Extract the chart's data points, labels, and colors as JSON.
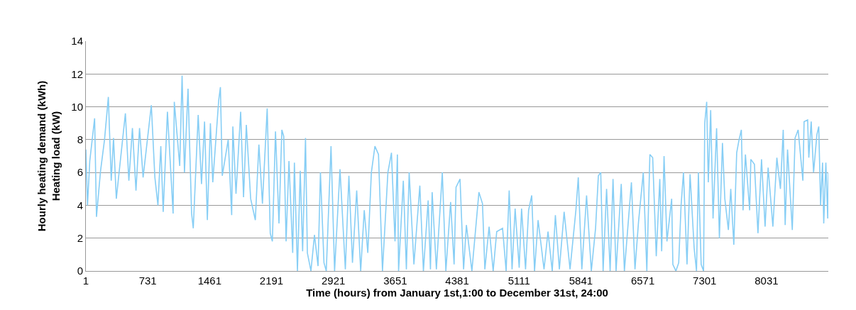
{
  "chart_data": {
    "type": "line",
    "xlabel": "Time (hours) from January 1st,1:00 to December 31st, 24:00",
    "ylabel": "Hourly heating demand (kWh)\nHeating load (kW)",
    "x": [
      1,
      20,
      47,
      104,
      126,
      174,
      221,
      266,
      300,
      327,
      360,
      467,
      508,
      550,
      592,
      634,
      676,
      773,
      815,
      851,
      885,
      913,
      963,
      1030,
      1044,
      1108,
      1136,
      1164,
      1206,
      1248,
      1268,
      1326,
      1365,
      1401,
      1434,
      1470,
      1498,
      1568,
      1588,
      1610,
      1680,
      1721,
      1735,
      1772,
      1827,
      1861,
      1894,
      1945,
      2000,
      2042,
      2084,
      2140,
      2176,
      2201,
      2238,
      2279,
      2313,
      2335,
      2363,
      2397,
      2441,
      2461,
      2497,
      2530,
      2558,
      2592,
      2614,
      2656,
      2698,
      2740,
      2768,
      2810,
      2837,
      2893,
      2935,
      2999,
      3062,
      3104,
      3146,
      3196,
      3243,
      3285,
      3327,
      3369,
      3411,
      3453,
      3500,
      3564,
      3606,
      3648,
      3676,
      3690,
      3746,
      3782,
      3815,
      3871,
      3941,
      3983,
      4039,
      4066,
      4086,
      4136,
      4206,
      4248,
      4304,
      4345,
      4368,
      4415,
      4457,
      4490,
      4555,
      4638,
      4680,
      4708,
      4758,
      4806,
      4848,
      4917,
      4959,
      4995,
      5029,
      5065,
      5113,
      5141,
      5188,
      5224,
      5261,
      5294,
      5336,
      5406,
      5453,
      5503,
      5540,
      5587,
      5643,
      5713,
      5782,
      5810,
      5852,
      5908,
      5964,
      6014,
      6047,
      6075,
      6103,
      6144,
      6186,
      6220,
      6256,
      6317,
      6354,
      6437,
      6479,
      6521,
      6577,
      6619,
      6655,
      6688,
      6730,
      6772,
      6794,
      6822,
      6856,
      6912,
      6926,
      6962,
      6995,
      7023,
      7051,
      7093,
      7129,
      7177,
      7205,
      7227,
      7260,
      7288,
      7302,
      7325,
      7344,
      7372,
      7400,
      7442,
      7475,
      7511,
      7539,
      7581,
      7609,
      7645,
      7679,
      7707,
      7734,
      7754,
      7782,
      7832,
      7846,
      7888,
      7930,
      7972,
      8014,
      8050,
      8106,
      8153,
      8195,
      8228,
      8251,
      8279,
      8335,
      8368,
      8404,
      8460,
      8474,
      8516,
      8530,
      8558,
      8586,
      8625,
      8647,
      8669,
      8692,
      8706,
      8731,
      8753,
      8760
    ],
    "series": [
      {
        "color": "#87cef5",
        "values": [
          7.4,
          4.0,
          6.7,
          9.3,
          3.3,
          6.1,
          8.0,
          10.6,
          5.5,
          8.1,
          4.4,
          9.6,
          5.5,
          8.7,
          4.9,
          8.7,
          5.7,
          10.1,
          5.7,
          4.0,
          7.6,
          3.6,
          9.7,
          3.5,
          10.3,
          6.4,
          11.9,
          6.0,
          11.1,
          3.5,
          2.6,
          9.5,
          5.3,
          9.1,
          3.1,
          9.0,
          5.4,
          10.4,
          11.2,
          5.8,
          8.0,
          3.4,
          8.8,
          4.7,
          9.7,
          4.5,
          8.9,
          4.4,
          3.1,
          7.7,
          4.1,
          9.9,
          2.3,
          1.8,
          8.5,
          2.9,
          8.6,
          8.2,
          1.8,
          6.7,
          1.1,
          6.6,
          0,
          6.1,
          1.2,
          8.1,
          1.1,
          0,
          2.2,
          0.3,
          6.0,
          0.5,
          0,
          7.6,
          0,
          6.2,
          0.1,
          5.8,
          0.5,
          4.9,
          0,
          3.7,
          1.1,
          6.0,
          7.6,
          7.1,
          0,
          6.0,
          7.2,
          1.8,
          7.1,
          0,
          5.5,
          0.1,
          6.0,
          0.4,
          5.2,
          0,
          4.3,
          0.1,
          4.8,
          0.1,
          6.0,
          0,
          4.2,
          0.4,
          5.1,
          5.6,
          0.1,
          2.8,
          0,
          4.8,
          4.1,
          0.1,
          2.7,
          0,
          2.4,
          2.6,
          0,
          4.9,
          0.1,
          3.8,
          0.2,
          3.8,
          0.1,
          3.7,
          4.6,
          0,
          3.1,
          0.1,
          2.4,
          0,
          3.4,
          0.1,
          3.6,
          0.1,
          3.7,
          5.7,
          0.1,
          4.6,
          0,
          2.6,
          5.8,
          6.0,
          0,
          5.0,
          0,
          5.6,
          0,
          5.3,
          0,
          5.4,
          0.1,
          3.0,
          6.0,
          0,
          7.1,
          6.9,
          0.9,
          5.6,
          1.2,
          7.0,
          1.8,
          4.4,
          0.4,
          0,
          0.5,
          4.0,
          6.0,
          0.4,
          5.9,
          1.4,
          0,
          6.0,
          0.4,
          0,
          9.0,
          10.3,
          5.4,
          9.8,
          3.2,
          8.7,
          2.0,
          7.8,
          4.4,
          2.5,
          5.0,
          1.6,
          7.2,
          8.0,
          8.6,
          3.7,
          7.1,
          3.7,
          6.8,
          6.5,
          2.3,
          6.8,
          2.7,
          6.3,
          2.7,
          6.9,
          5.0,
          8.6,
          2.8,
          7.4,
          2.5,
          8.1,
          8.6,
          5.5,
          9.1,
          9.2,
          6.9,
          9.1,
          6.0,
          8.3,
          8.8,
          4.0,
          6.6,
          2.9,
          6.6,
          3.2,
          6.0
        ]
      }
    ],
    "xlim": [
      1,
      8760
    ],
    "xticks": [
      1,
      731,
      1461,
      2191,
      2921,
      3651,
      4381,
      5111,
      5841,
      6571,
      7301,
      8031
    ],
    "ylim": [
      0,
      14
    ],
    "yticks": [
      0,
      2,
      4,
      6,
      8,
      10,
      12,
      14
    ],
    "grid": "y",
    "marker": "none",
    "line_style": "solid"
  }
}
